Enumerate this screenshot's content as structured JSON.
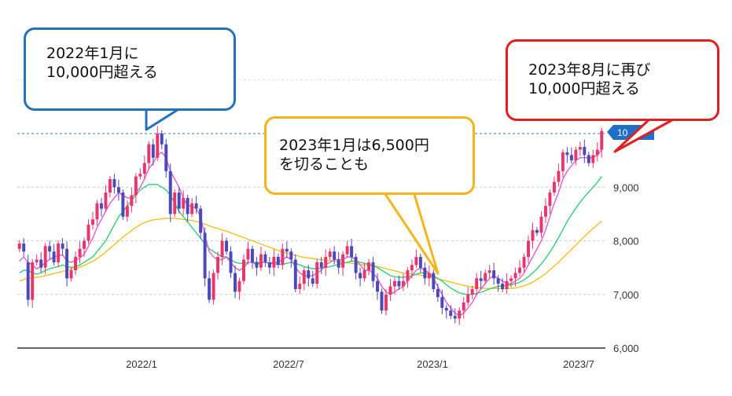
{
  "chart_data": {
    "type": "candlestick",
    "y_axis": {
      "position": "right",
      "range": [
        6000,
        10300
      ],
      "ticks": [
        6000,
        7000,
        8000,
        9000
      ]
    },
    "x_axis": {
      "ticks": [
        "2022/1",
        "2022/7",
        "2023/1",
        "2023/7"
      ]
    },
    "reference_line": {
      "value": 10000,
      "style": "dashed",
      "label": "10"
    },
    "gridlines": "horizontal-dashed",
    "colors": {
      "up": "#e8356b",
      "down": "#4b48b8",
      "ma_short": "#e05bd0",
      "ma_mid": "#2fcf78",
      "ma_long": "#f3c21a",
      "reference": "#2d7fcf"
    },
    "closes": [
      7950,
      7800,
      6900,
      7600,
      7650,
      7500,
      7900,
      7800,
      7600,
      7950,
      7850,
      7300,
      7450,
      7700,
      7850,
      8000,
      8300,
      8400,
      8700,
      8600,
      8900,
      9150,
      9000,
      8900,
      8450,
      8650,
      8850,
      9200,
      9250,
      9450,
      9800,
      9550,
      10000,
      9800,
      9300,
      8500,
      8900,
      8600,
      8800,
      8500,
      8700,
      8600,
      8150,
      7300,
      6900,
      7400,
      7700,
      8000,
      7800,
      7400,
      7050,
      7250,
      7650,
      7850,
      7600,
      7500,
      7750,
      7600,
      7500,
      7700,
      7550,
      7850,
      7800,
      7650,
      7100,
      7200,
      7450,
      7300,
      7200,
      7600,
      7500,
      7700,
      7800,
      7650,
      7500,
      7750,
      7900,
      7700,
      7400,
      7300,
      7450,
      7600,
      7250,
      7050,
      6700,
      7000,
      7150,
      7250,
      7150,
      7250,
      7450,
      7550,
      7700,
      7500,
      7300,
      7400,
      7100,
      6950,
      6750,
      6700,
      6600,
      6550,
      6700,
      6850,
      7000,
      7100,
      7300,
      7250,
      7400,
      7450,
      7300,
      7200,
      7100,
      7250,
      7300,
      7400,
      7500,
      7700,
      8000,
      8200,
      8150,
      8450,
      8650,
      8900,
      9100,
      9300,
      9650,
      9600,
      9500,
      9700,
      9750,
      9600,
      9450,
      9600,
      9700,
      10050
    ],
    "opens": [
      7850,
      7950,
      7600,
      6900,
      7600,
      7650,
      7500,
      7900,
      7800,
      7600,
      7950,
      7850,
      7300,
      7450,
      7700,
      7850,
      8000,
      8300,
      8400,
      8700,
      8600,
      8900,
      9150,
      9000,
      8900,
      8450,
      8650,
      8850,
      9200,
      9250,
      9450,
      9800,
      9550,
      10000,
      9800,
      9300,
      8500,
      8900,
      8600,
      8800,
      8500,
      8700,
      8600,
      8150,
      7300,
      6900,
      7400,
      7700,
      8000,
      7800,
      7400,
      7050,
      7250,
      7650,
      7850,
      7600,
      7500,
      7750,
      7600,
      7500,
      7700,
      7550,
      7850,
      7800,
      7650,
      7100,
      7200,
      7450,
      7300,
      7200,
      7600,
      7500,
      7700,
      7800,
      7650,
      7500,
      7750,
      7900,
      7700,
      7400,
      7300,
      7450,
      7600,
      7250,
      7050,
      6700,
      7000,
      7150,
      7250,
      7150,
      7250,
      7450,
      7550,
      7700,
      7500,
      7300,
      7400,
      7100,
      6950,
      6750,
      6700,
      6600,
      6550,
      6700,
      6850,
      7000,
      7100,
      7300,
      7250,
      7400,
      7450,
      7300,
      7200,
      7100,
      7250,
      7300,
      7400,
      7500,
      7700,
      8000,
      8200,
      8150,
      8450,
      8650,
      8900,
      9100,
      9300,
      9650,
      9600,
      9500,
      9700,
      9750,
      9600,
      9450,
      9600,
      9700
    ],
    "ma_short": [
      7620,
      7700,
      7600,
      7550,
      7480,
      7520,
      7600,
      7650,
      7700,
      7720,
      7740,
      7620,
      7600,
      7640,
      7680,
      7750,
      7900,
      8050,
      8250,
      8400,
      8550,
      8700,
      8800,
      8900,
      8850,
      8800,
      8800,
      8900,
      9000,
      9150,
      9350,
      9450,
      9600,
      9650,
      9550,
      9300,
      9150,
      9000,
      8800,
      8650,
      8650,
      8600,
      8450,
      8100,
      7800,
      7700,
      7650,
      7650,
      7700,
      7600,
      7500,
      7450,
      7500,
      7600,
      7600,
      7550,
      7600,
      7600,
      7580,
      7600,
      7600,
      7650,
      7700,
      7650,
      7500,
      7400,
      7350,
      7350,
      7350,
      7400,
      7450,
      7550,
      7600,
      7650,
      7650,
      7650,
      7700,
      7700,
      7650,
      7550,
      7450,
      7450,
      7400,
      7300,
      7150,
      7050,
      7000,
      7050,
      7100,
      7150,
      7250,
      7350,
      7450,
      7500,
      7450,
      7400,
      7300,
      7150,
      7000,
      6850,
      6750,
      6650,
      6600,
      6650,
      6750,
      6850,
      7000,
      7100,
      7200,
      7300,
      7350,
      7300,
      7250,
      7200,
      7200,
      7250,
      7300,
      7400,
      7550,
      7700,
      7850,
      8000,
      8200,
      8450,
      8700,
      8900,
      9150,
      9300,
      9400,
      9500,
      9550,
      9550,
      9550,
      9550,
      9600,
      9700
    ],
    "ma_mid": [
      7400,
      7450,
      7450,
      7400,
      7380,
      7400,
      7450,
      7480,
      7500,
      7520,
      7550,
      7520,
      7500,
      7520,
      7550,
      7600,
      7650,
      7700,
      7800,
      7900,
      8000,
      8150,
      8300,
      8450,
      8550,
      8650,
      8750,
      8850,
      8950,
      9000,
      9050,
      9050,
      9050,
      9000,
      8950,
      8850,
      8700,
      8550,
      8450,
      8350,
      8250,
      8150,
      8050,
      7950,
      7850,
      7800,
      7750,
      7700,
      7700,
      7650,
      7600,
      7580,
      7580,
      7600,
      7600,
      7600,
      7600,
      7600,
      7580,
      7570,
      7560,
      7560,
      7580,
      7600,
      7580,
      7550,
      7520,
      7500,
      7480,
      7480,
      7490,
      7500,
      7520,
      7540,
      7560,
      7580,
      7600,
      7620,
      7620,
      7600,
      7580,
      7560,
      7540,
      7500,
      7450,
      7400,
      7350,
      7330,
      7320,
      7320,
      7330,
      7350,
      7380,
      7400,
      7400,
      7380,
      7350,
      7300,
      7250,
      7180,
      7120,
      7070,
      7030,
      7010,
      7000,
      7000,
      7020,
      7040,
      7070,
      7100,
      7130,
      7150,
      7160,
      7170,
      7180,
      7200,
      7230,
      7270,
      7330,
      7400,
      7480,
      7570,
      7670,
      7790,
      7920,
      8060,
      8210,
      8360,
      8490,
      8610,
      8720,
      8820,
      8910,
      9000,
      9090,
      9200
    ],
    "ma_long": [
      7250,
      7280,
      7300,
      7310,
      7320,
      7330,
      7350,
      7370,
      7390,
      7410,
      7430,
      7450,
      7470,
      7490,
      7510,
      7540,
      7580,
      7620,
      7670,
      7730,
      7790,
      7860,
      7930,
      8000,
      8070,
      8130,
      8190,
      8250,
      8300,
      8340,
      8370,
      8390,
      8400,
      8410,
      8420,
      8420,
      8420,
      8410,
      8400,
      8390,
      8380,
      8360,
      8340,
      8310,
      8280,
      8250,
      8230,
      8200,
      8180,
      8150,
      8120,
      8090,
      8060,
      8030,
      8000,
      7970,
      7940,
      7910,
      7880,
      7850,
      7820,
      7790,
      7770,
      7750,
      7730,
      7710,
      7690,
      7680,
      7670,
      7660,
      7650,
      7640,
      7630,
      7620,
      7610,
      7600,
      7590,
      7580,
      7570,
      7560,
      7550,
      7540,
      7530,
      7520,
      7500,
      7480,
      7460,
      7440,
      7420,
      7400,
      7390,
      7380,
      7370,
      7360,
      7350,
      7330,
      7310,
      7290,
      7270,
      7250,
      7230,
      7210,
      7190,
      7170,
      7150,
      7140,
      7130,
      7120,
      7110,
      7110,
      7110,
      7110,
      7110,
      7110,
      7110,
      7120,
      7140,
      7160,
      7190,
      7230,
      7280,
      7330,
      7390,
      7460,
      7530,
      7600,
      7680,
      7760,
      7840,
      7920,
      8000,
      8080,
      8160,
      8230,
      8300,
      8370
    ]
  },
  "annotations": [
    {
      "id": "callout-2022-01",
      "color": "#2471b8",
      "lines": [
        "2022年1月に",
        "10,000円超える"
      ]
    },
    {
      "id": "callout-2023-01",
      "color": "#f4b41a",
      "lines": [
        "2023年1月は6,500円",
        "を切ることも"
      ]
    },
    {
      "id": "callout-2023-08",
      "color": "#e02020",
      "lines": [
        "2023年8月に再び",
        "10,000円超える"
      ]
    }
  ]
}
